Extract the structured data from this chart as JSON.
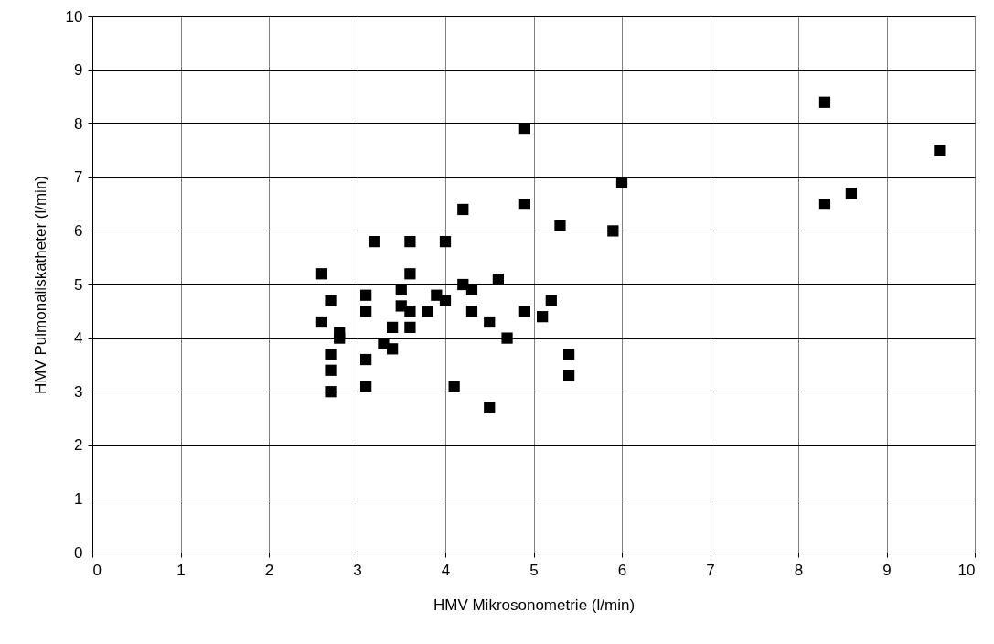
{
  "chart_data": {
    "type": "scatter",
    "xlabel": "HMV Mikrosonometrie (l/min)",
    "ylabel": "HMV Pulmonaliskatheter  (l/min)",
    "x": [
      2.6,
      2.6,
      2.7,
      2.7,
      2.7,
      2.7,
      2.8,
      2.8,
      3.1,
      3.1,
      3.1,
      3.1,
      3.2,
      3.3,
      3.4,
      3.4,
      3.5,
      3.5,
      3.6,
      3.6,
      3.6,
      3.6,
      3.8,
      3.9,
      4.0,
      4.0,
      4.1,
      4.2,
      4.2,
      4.3,
      4.3,
      4.5,
      4.5,
      4.6,
      4.7,
      4.9,
      4.9,
      4.9,
      5.1,
      5.2,
      5.3,
      5.4,
      5.4,
      5.9,
      6.0,
      8.3,
      8.3,
      8.6,
      9.6
    ],
    "series": [
      {
        "color": "#000000",
        "values": [
          5.2,
          4.3,
          4.7,
          3.7,
          3.4,
          3.0,
          4.1,
          4.0,
          4.8,
          4.5,
          3.6,
          3.1,
          5.8,
          3.9,
          4.2,
          3.8,
          4.9,
          4.6,
          5.8,
          5.2,
          4.5,
          4.2,
          4.5,
          4.8,
          5.8,
          4.7,
          3.1,
          6.4,
          5.0,
          4.9,
          4.5,
          4.3,
          2.7,
          5.1,
          4.0,
          7.9,
          6.5,
          4.5,
          4.4,
          4.7,
          6.1,
          3.7,
          3.3,
          6.0,
          6.9,
          8.4,
          6.5,
          6.7,
          7.5
        ]
      }
    ],
    "xlim": [
      0,
      10
    ],
    "ylim": [
      0,
      10
    ],
    "xticks": [
      0,
      1,
      2,
      3,
      4,
      5,
      6,
      7,
      8,
      9,
      10
    ],
    "yticks": [
      0,
      1,
      2,
      3,
      4,
      5,
      6,
      7,
      8,
      9,
      10
    ],
    "grid": true,
    "marker": "square"
  }
}
